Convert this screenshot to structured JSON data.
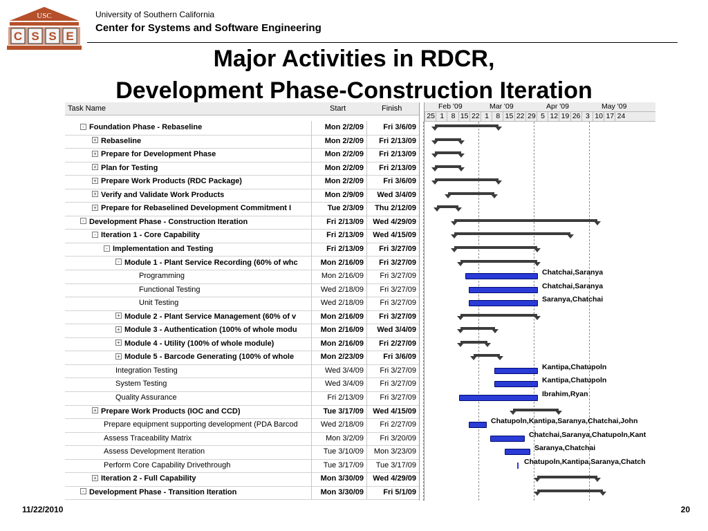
{
  "header": {
    "logo_text": "USC",
    "logo_letters": [
      "C",
      "S",
      "S",
      "E"
    ],
    "university": "University of Southern California",
    "center": "Center for Systems and Software Engineering"
  },
  "title_line1": "Major Activities in RDCR,",
  "title_line2": "Development Phase-Construction Iteration",
  "table": {
    "headers": {
      "task_name": "Task Name",
      "start": "Start",
      "finish": "Finish"
    },
    "rows": [
      {
        "name": "Foundation Phase - Rebaseline",
        "start": "Mon 2/2/09",
        "finish": "Fri 3/6/09"
      },
      {
        "name": "Rebaseline",
        "start": "Mon 2/2/09",
        "finish": "Fri 2/13/09"
      },
      {
        "name": "Prepare for Development Phase",
        "start": "Mon 2/2/09",
        "finish": "Fri 2/13/09"
      },
      {
        "name": "Plan for Testing",
        "start": "Mon 2/2/09",
        "finish": "Fri 2/13/09"
      },
      {
        "name": "Prepare Work Products (RDC Package)",
        "start": "Mon 2/2/09",
        "finish": "Fri 3/6/09"
      },
      {
        "name": "Verify and Validate Work Products",
        "start": "Mon 2/9/09",
        "finish": "Wed 3/4/09"
      },
      {
        "name": "Prepare for Rebaselined Development Commitment I",
        "start": "Tue 2/3/09",
        "finish": "Thu 2/12/09"
      },
      {
        "name": "Development Phase - Construction Iteration",
        "start": "Fri 2/13/09",
        "finish": "Wed 4/29/09"
      },
      {
        "name": "Iteration 1 - Core Capability",
        "start": "Fri 2/13/09",
        "finish": "Wed 4/15/09"
      },
      {
        "name": "Implementation and Testing",
        "start": "Fri 2/13/09",
        "finish": "Fri 3/27/09"
      },
      {
        "name": "Module 1 - Plant Service Recording (60% of whc",
        "start": "Mon 2/16/09",
        "finish": "Fri 3/27/09"
      },
      {
        "name": "Programming",
        "start": "Mon 2/16/09",
        "finish": "Fri 3/27/09"
      },
      {
        "name": "Functional Testing",
        "start": "Wed 2/18/09",
        "finish": "Fri 3/27/09"
      },
      {
        "name": "Unit Testing",
        "start": "Wed 2/18/09",
        "finish": "Fri 3/27/09"
      },
      {
        "name": "Module 2 - Plant Service Management (60% of v",
        "start": "Mon 2/16/09",
        "finish": "Fri 3/27/09"
      },
      {
        "name": "Module 3 - Authentication (100% of whole modu",
        "start": "Mon 2/16/09",
        "finish": "Wed 3/4/09"
      },
      {
        "name": "Module 4 - Utility (100% of whole module)",
        "start": "Mon 2/16/09",
        "finish": "Fri 2/27/09"
      },
      {
        "name": "Module 5 - Barcode Generating (100% of whole",
        "start": "Mon 2/23/09",
        "finish": "Fri 3/6/09"
      },
      {
        "name": "Integration Testing",
        "start": "Wed 3/4/09",
        "finish": "Fri 3/27/09"
      },
      {
        "name": "System Testing",
        "start": "Wed 3/4/09",
        "finish": "Fri 3/27/09"
      },
      {
        "name": "Quality Assurance",
        "start": "Fri 2/13/09",
        "finish": "Fri 3/27/09"
      },
      {
        "name": "Prepare Work Products (IOC and CCD)",
        "start": "Tue 3/17/09",
        "finish": "Wed 4/15/09"
      },
      {
        "name": "Prepare equipment supporting development (PDA Barcod",
        "start": "Wed 2/18/09",
        "finish": "Fri 2/27/09"
      },
      {
        "name": "Assess Traceability Matrix",
        "start": "Mon 3/2/09",
        "finish": "Fri 3/20/09"
      },
      {
        "name": "Assess Development Iteration",
        "start": "Tue 3/10/09",
        "finish": "Mon 3/23/09"
      },
      {
        "name": "Perform Core Capability Drivethrough",
        "start": "Tue 3/17/09",
        "finish": "Tue 3/17/09"
      },
      {
        "name": "Iteration 2 - Full Capability",
        "start": "Mon 3/30/09",
        "finish": "Wed 4/29/09"
      },
      {
        "name": "Development Phase - Transition Iteration",
        "start": "Mon 3/30/09",
        "finish": "Fri 5/1/09"
      }
    ]
  },
  "timescale": {
    "months": [
      "Feb '09",
      "Mar '09",
      "Apr '09",
      "May '09"
    ],
    "weeks": [
      "25",
      "1",
      "8",
      "15",
      "22",
      "1",
      "8",
      "15",
      "22",
      "29",
      "5",
      "12",
      "19",
      "26",
      "3",
      "10",
      "17",
      "24"
    ]
  },
  "resources": {
    "programming": "Chatchai,Saranya",
    "functional": "Chatchai,Saranya",
    "unit": "Saranya,Chatchai",
    "integration": "Kantipa,Chatupoln",
    "system": "Kantipa,Chatupoln",
    "qa": "Ibrahim,Ryan",
    "equipment": "Chatupoln,Kantipa,Saranya,Chatchai,John",
    "traceability": "Chatchai,Saranya,Chatupoln,Kant",
    "devit": "Saranya,Chatchai",
    "drivethrough": "Chatupoln,Kantipa,Saranya,Chatch"
  },
  "footer": {
    "date": "11/22/2010",
    "page": "20"
  },
  "colors": {
    "task_bar": "#2a3bd6",
    "summary_bar": "#3c3c3c",
    "logo": "#b5502a"
  }
}
